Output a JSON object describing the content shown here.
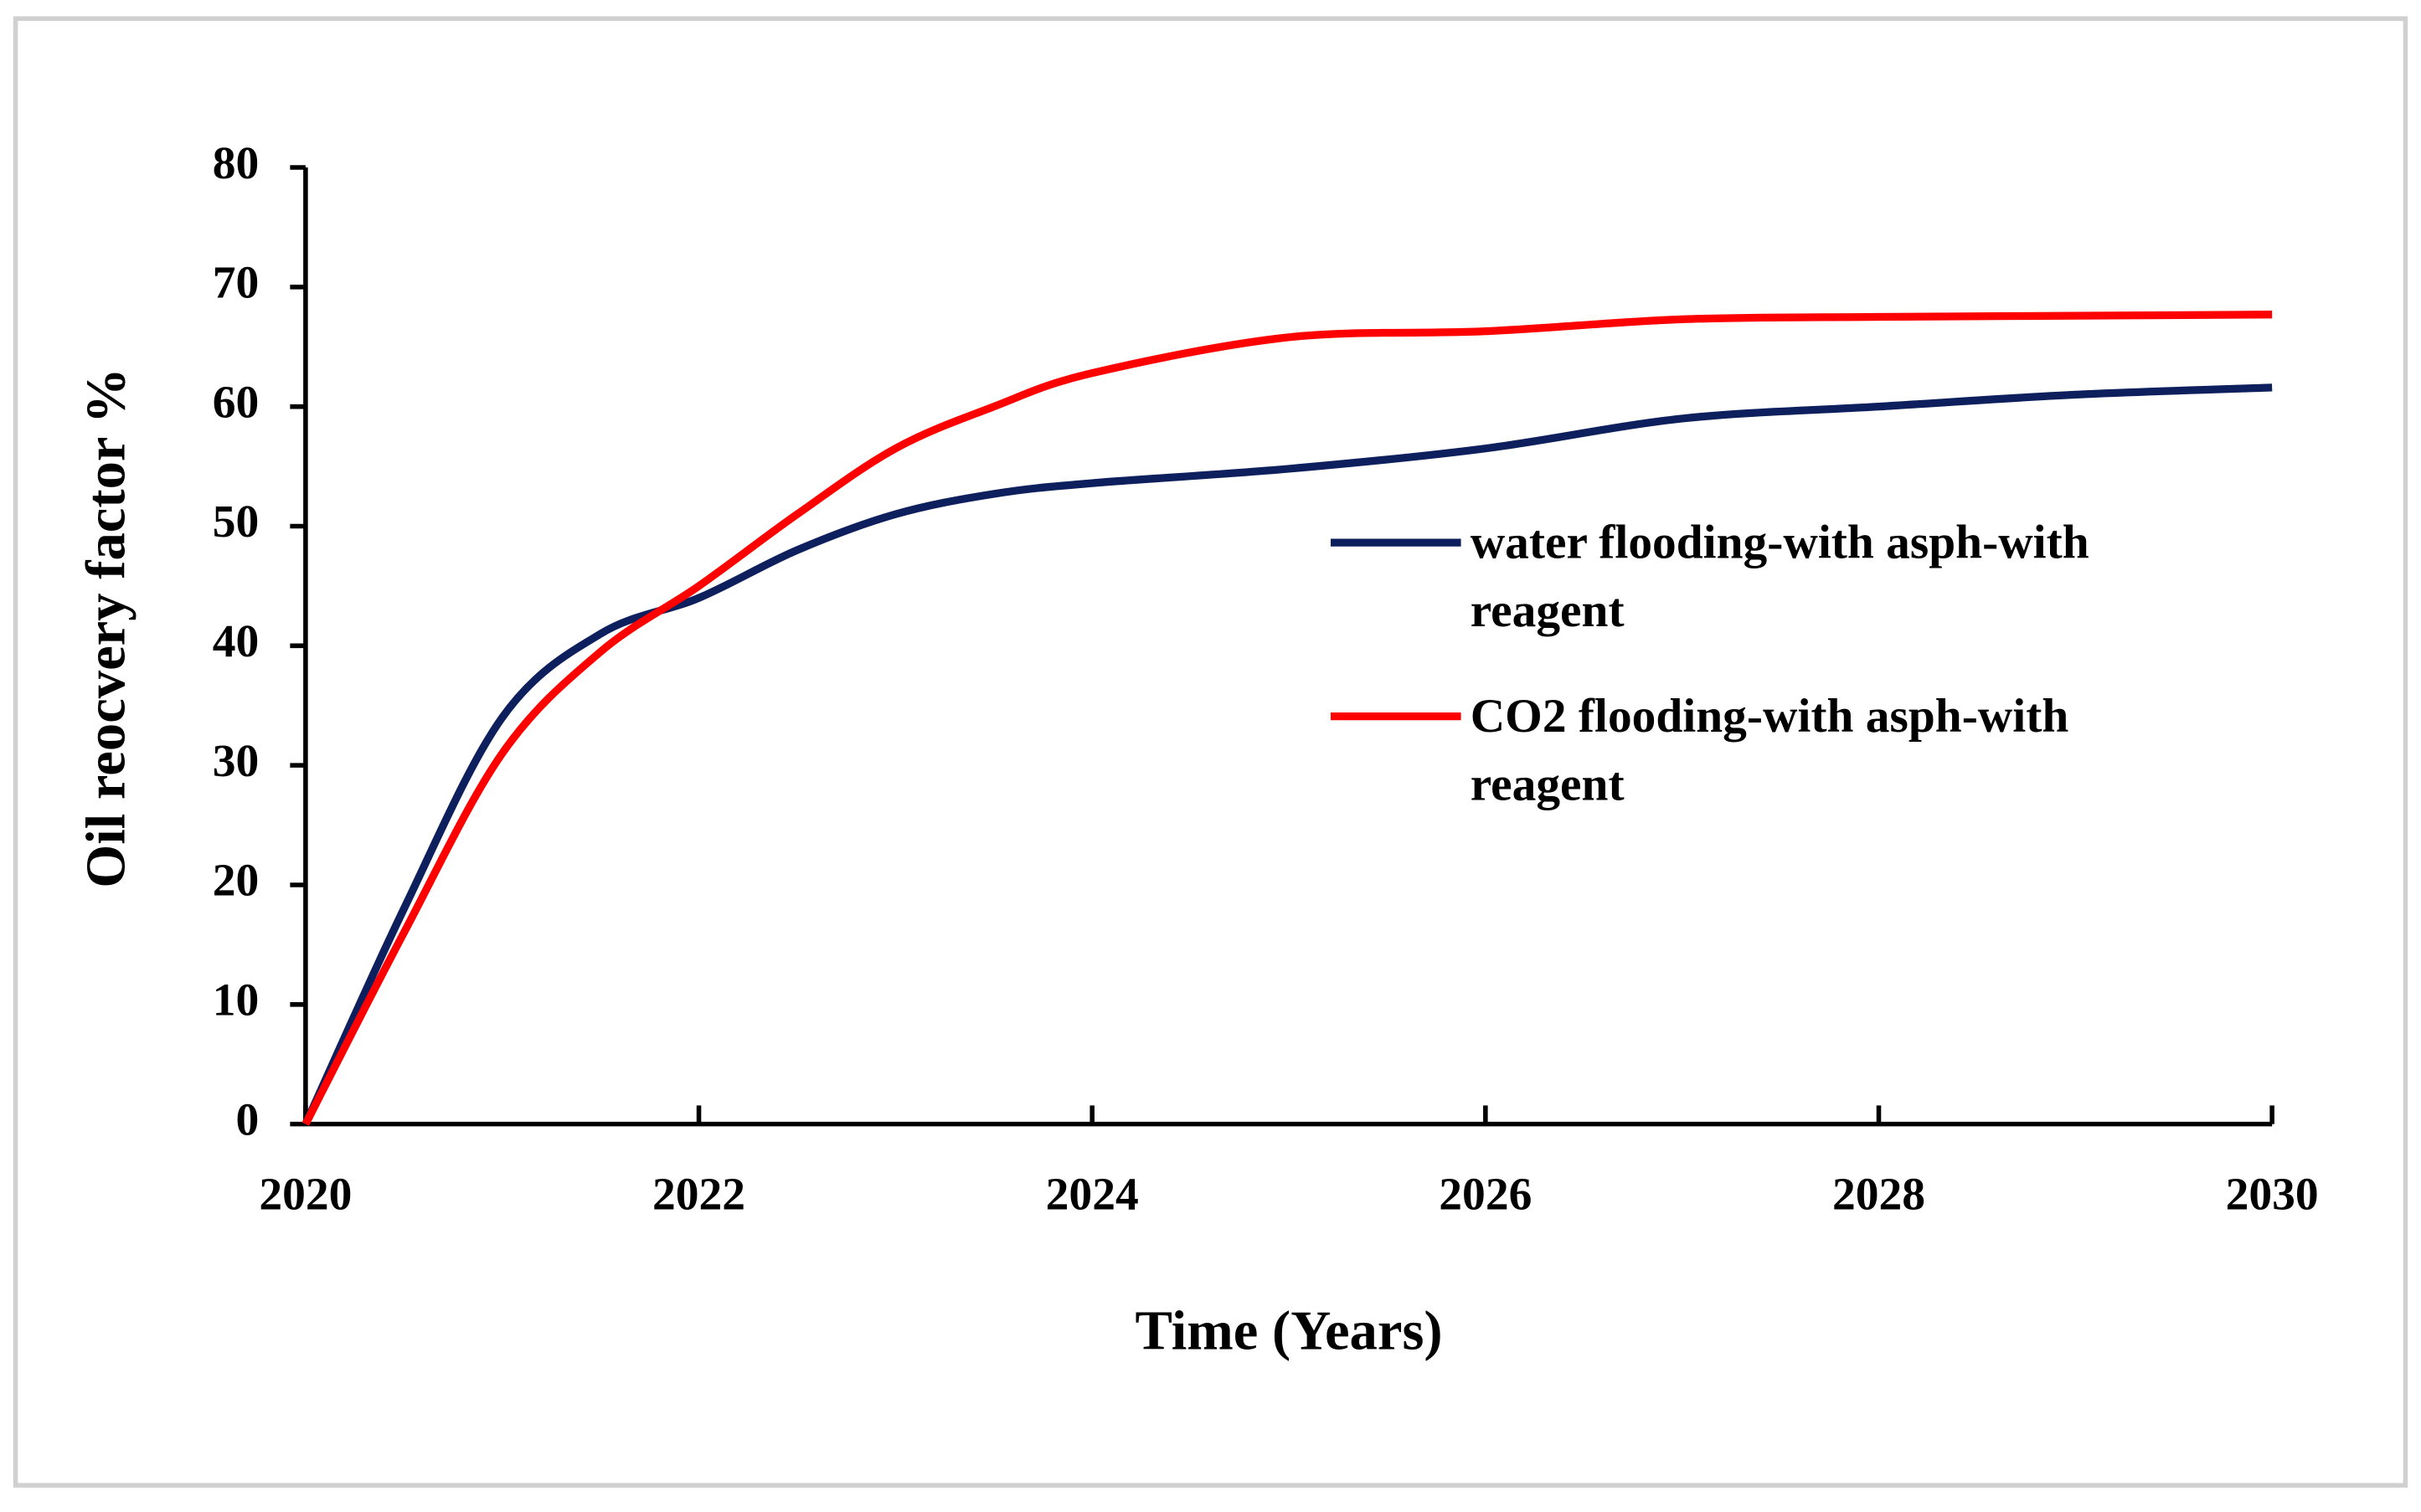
{
  "chart_data": {
    "type": "line",
    "x_label": "Time (Years)",
    "y_label": "Oil reocvery factor %",
    "x": [
      2020,
      2020.5,
      2021,
      2021.5,
      2022,
      2022.5,
      2023,
      2023.5,
      2024,
      2025,
      2026,
      2027,
      2028,
      2029,
      2030
    ],
    "series": [
      {
        "name": "water flooding-with asph-with reagent",
        "color": "#0d1f5c",
        "values": [
          0,
          18,
          34,
          41,
          44,
          48,
          51,
          52.7,
          53.6,
          54.8,
          56.5,
          59,
          60,
          61,
          61.6
        ]
      },
      {
        "name": "CO2 flooding-with asph-with reagent",
        "color": "#ff0000",
        "values": [
          0,
          16,
          31,
          39.5,
          45,
          51,
          56.5,
          60,
          62.8,
          65.8,
          66.3,
          67.3,
          67.5,
          67.6,
          67.7
        ]
      }
    ],
    "xlim": [
      2020,
      2030
    ],
    "xticks": [
      2020,
      2022,
      2024,
      2026,
      2028,
      2030
    ],
    "ylim": [
      0,
      80
    ],
    "yticks": [
      0,
      10,
      20,
      30,
      40,
      50,
      60,
      70,
      80
    ],
    "grid": false,
    "legend": "center right"
  }
}
